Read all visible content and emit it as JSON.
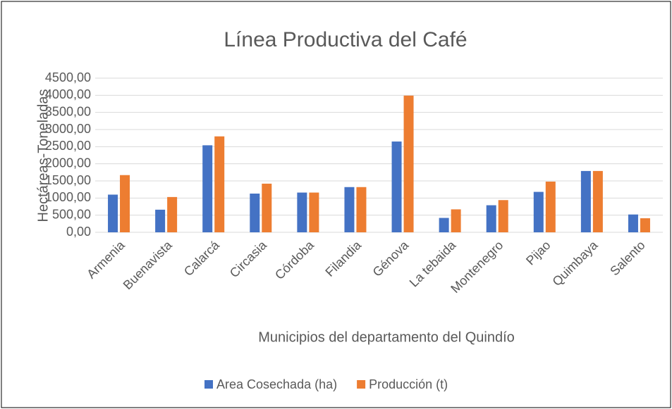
{
  "chart_data": {
    "type": "bar",
    "title": "Línea Productiva del Café",
    "x_label": "Municipios del departamento del Quindío",
    "y_label": "Hectáreas-Toneladas",
    "categories": [
      "Armenia",
      "Buenavista",
      "Calarcá",
      "Circasia",
      "Córdoba",
      "Filandia",
      "Génova",
      "La tebaida",
      "Montenegro",
      "Pijao",
      "Quimbaya",
      "Salento"
    ],
    "series": [
      {
        "name": "Area Cosechada (ha)",
        "color": "#4472c4",
        "values": [
          1100,
          660,
          2540,
          1130,
          1160,
          1320,
          2650,
          420,
          790,
          1180,
          1790,
          520
        ]
      },
      {
        "name": "Producción (t)",
        "color": "#ed7d31",
        "values": [
          1670,
          1030,
          2800,
          1420,
          1160,
          1320,
          3990,
          670,
          940,
          1480,
          1790,
          410
        ]
      }
    ],
    "ylim": [
      0,
      4500
    ],
    "yticks": [
      {
        "value": 0,
        "label": "0,00"
      },
      {
        "value": 500,
        "label": "500,00"
      },
      {
        "value": 1000,
        "label": "1000,00"
      },
      {
        "value": 1500,
        "label": "1500,00"
      },
      {
        "value": 2000,
        "label": "2000,00"
      },
      {
        "value": 2500,
        "label": "2500,00"
      },
      {
        "value": 3000,
        "label": "3000,00"
      },
      {
        "value": 3500,
        "label": "3500,00"
      },
      {
        "value": 4000,
        "label": "4000,00"
      },
      {
        "value": 4500,
        "label": "4500,00"
      }
    ],
    "grid": true,
    "legend": "bottom"
  }
}
